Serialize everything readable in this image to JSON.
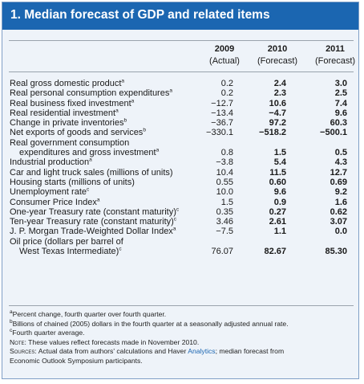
{
  "title": "1. Median forecast of GDP and related items",
  "columns": [
    {
      "year": "2009",
      "sub": "(Actual)"
    },
    {
      "year": "2010",
      "sub": "(Forecast)"
    },
    {
      "year": "2011",
      "sub": "(Forecast)"
    }
  ],
  "rows": [
    {
      "label": "Real gross domestic product",
      "sup": "a",
      "values": [
        "0.2",
        "2.4",
        "3.0"
      ]
    },
    {
      "label": "Real personal consumption expenditures",
      "sup": "a",
      "values": [
        "0.2",
        "2.3",
        "2.5"
      ]
    },
    {
      "label": "Real business fixed investment",
      "sup": "a",
      "values": [
        "−12.7",
        "10.6",
        "7.4"
      ]
    },
    {
      "label": "Real residential investment",
      "sup": "a",
      "values": [
        "−13.4",
        "−4.7",
        "9.6"
      ]
    },
    {
      "label": "Change in private inventories",
      "sup": "b",
      "values": [
        "−36.7",
        "97.2",
        "60.3"
      ]
    },
    {
      "label": "Net exports of goods and services",
      "sup": "b",
      "values": [
        "−330.1",
        "−518.2",
        "−500.1"
      ]
    },
    {
      "label": "Real government consumption",
      "sup": "",
      "values": [
        "",
        "",
        ""
      ]
    },
    {
      "label": "expenditures and gross investment",
      "sup": "a",
      "values": [
        "0.8",
        "1.5",
        "0.5"
      ],
      "indent": true
    },
    {
      "label": "Industrial production",
      "sup": "a",
      "values": [
        "−3.8",
        "5.4",
        "4.3"
      ]
    },
    {
      "label": "Car and light truck sales (millions of units)",
      "sup": "",
      "values": [
        "10.4",
        "11.5",
        "12.7"
      ]
    },
    {
      "label": "Housing starts (millions of units)",
      "sup": "",
      "values": [
        "0.55",
        "0.60",
        "0.69"
      ]
    },
    {
      "label": "Unemployment rate",
      "sup": "c",
      "values": [
        "10.0",
        "9.6",
        "9.2"
      ]
    },
    {
      "label": "Consumer Price Index",
      "sup": "a",
      "values": [
        "1.5",
        "0.9",
        "1.6"
      ]
    },
    {
      "label": "One-year Treasury rate (constant maturity)",
      "sup": "c",
      "values": [
        "0.35",
        "0.27",
        "0.62"
      ]
    },
    {
      "label": "Ten-year Treasury rate (constant maturity)",
      "sup": "c",
      "values": [
        "3.46",
        "2.61",
        "3.07"
      ]
    },
    {
      "label": "J. P. Morgan Trade-Weighted Dollar Index",
      "sup": "a",
      "values": [
        "−7.5",
        "1.1",
        "0.0"
      ]
    },
    {
      "label": "Oil price (dollars per barrel of",
      "sup": "",
      "values": [
        "",
        "",
        ""
      ]
    },
    {
      "label": "West Texas Intermediate)",
      "sup": "c",
      "values": [
        "76.07",
        "82.67",
        "85.30"
      ],
      "indent": true
    }
  ],
  "notes": {
    "a": {
      "mark": "a",
      "text": "Percent change, fourth quarter over fourth quarter."
    },
    "b": {
      "mark": "b",
      "text": "Billions of chained (2005) dollars in the fourth quarter at a seasonally adjusted annual rate."
    },
    "c": {
      "mark": "c",
      "text": "Fourth quarter average."
    },
    "note": {
      "label": "Note:",
      "text": " These values reflect forecasts made in November 2010."
    },
    "sources": {
      "label": "Sources:",
      "text": " Actual data from authors' calculations and Haver ",
      "link": "Analytics",
      "text2": "; median forecast from",
      "line2": "Economic Outlook Symposium participants."
    }
  }
}
